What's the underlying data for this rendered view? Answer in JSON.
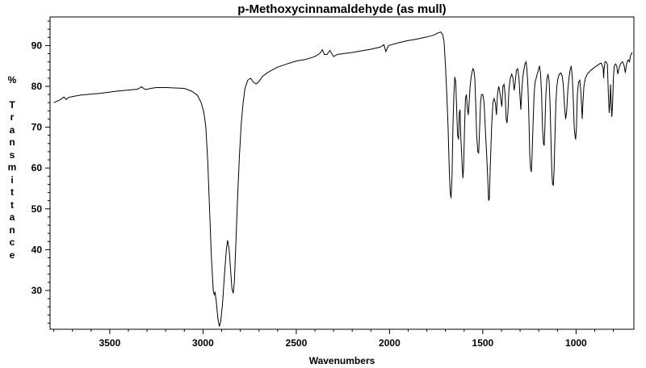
{
  "chart_data": {
    "type": "line",
    "title": "p-Methoxycinnamaldehyde (as mull)",
    "xlabel": "Wavenumbers",
    "ylabel": "% Transmittance",
    "xlim": [
      3820,
      690
    ],
    "ylim": [
      20.5,
      97
    ],
    "x_reversed": true,
    "grid": false,
    "x_ticks": [
      3500,
      3000,
      2500,
      2000,
      1500,
      1000
    ],
    "y_ticks": [
      30,
      40,
      50,
      60,
      70,
      80,
      90
    ],
    "series": [
      {
        "line_color": "#000000",
        "points": [
          [
            3800,
            76
          ],
          [
            3770,
            76.6
          ],
          [
            3745,
            77.4
          ],
          [
            3735,
            76.8
          ],
          [
            3720,
            77.3
          ],
          [
            3700,
            77.5
          ],
          [
            3650,
            77.9
          ],
          [
            3600,
            78.1
          ],
          [
            3550,
            78.3
          ],
          [
            3500,
            78.6
          ],
          [
            3450,
            78.9
          ],
          [
            3400,
            79.1
          ],
          [
            3350,
            79.3
          ],
          [
            3330,
            79.9
          ],
          [
            3310,
            79.2
          ],
          [
            3280,
            79.5
          ],
          [
            3250,
            79.7
          ],
          [
            3200,
            79.7
          ],
          [
            3150,
            79.6
          ],
          [
            3100,
            79.5
          ],
          [
            3060,
            78.8
          ],
          [
            3030,
            77.8
          ],
          [
            3010,
            76
          ],
          [
            2995,
            73.5
          ],
          [
            2985,
            70
          ],
          [
            2975,
            62
          ],
          [
            2965,
            50
          ],
          [
            2955,
            38
          ],
          [
            2945,
            30
          ],
          [
            2940,
            29
          ],
          [
            2935,
            29.5
          ],
          [
            2928,
            27
          ],
          [
            2920,
            23
          ],
          [
            2912,
            21.2
          ],
          [
            2905,
            22.5
          ],
          [
            2895,
            27
          ],
          [
            2885,
            34
          ],
          [
            2875,
            40
          ],
          [
            2868,
            42.3
          ],
          [
            2860,
            40
          ],
          [
            2852,
            35
          ],
          [
            2845,
            30.5
          ],
          [
            2838,
            29.3
          ],
          [
            2832,
            32
          ],
          [
            2825,
            40
          ],
          [
            2815,
            52
          ],
          [
            2805,
            63
          ],
          [
            2795,
            71
          ],
          [
            2785,
            76
          ],
          [
            2775,
            79.5
          ],
          [
            2760,
            81.5
          ],
          [
            2745,
            82
          ],
          [
            2730,
            81
          ],
          [
            2715,
            80.6
          ],
          [
            2700,
            81.2
          ],
          [
            2680,
            82.5
          ],
          [
            2650,
            83.5
          ],
          [
            2600,
            84.7
          ],
          [
            2550,
            85.5
          ],
          [
            2500,
            86.2
          ],
          [
            2450,
            86.6
          ],
          [
            2400,
            87.3
          ],
          [
            2375,
            88
          ],
          [
            2360,
            89
          ],
          [
            2350,
            87.8
          ],
          [
            2335,
            87.8
          ],
          [
            2320,
            88.8
          ],
          [
            2300,
            87.3
          ],
          [
            2280,
            87.8
          ],
          [
            2250,
            88
          ],
          [
            2200,
            88.3
          ],
          [
            2150,
            88.7
          ],
          [
            2100,
            89.1
          ],
          [
            2050,
            89.6
          ],
          [
            2030,
            90.2
          ],
          [
            2020,
            88.5
          ],
          [
            2005,
            90
          ],
          [
            1950,
            90.7
          ],
          [
            1900,
            91.2
          ],
          [
            1850,
            91.6
          ],
          [
            1800,
            92.1
          ],
          [
            1760,
            92.6
          ],
          [
            1740,
            93.1
          ],
          [
            1725,
            93.3
          ],
          [
            1715,
            92.7
          ],
          [
            1708,
            91
          ],
          [
            1700,
            85
          ],
          [
            1693,
            78
          ],
          [
            1686,
            70
          ],
          [
            1680,
            60
          ],
          [
            1675,
            54
          ],
          [
            1670,
            52.6
          ],
          [
            1665,
            58
          ],
          [
            1660,
            70
          ],
          [
            1655,
            78
          ],
          [
            1650,
            82.3
          ],
          [
            1645,
            81
          ],
          [
            1640,
            74
          ],
          [
            1635,
            68
          ],
          [
            1630,
            67
          ],
          [
            1626,
            73.5
          ],
          [
            1622,
            74.3
          ],
          [
            1618,
            68
          ],
          [
            1612,
            62
          ],
          [
            1607,
            57.5
          ],
          [
            1603,
            60
          ],
          [
            1598,
            70
          ],
          [
            1593,
            77
          ],
          [
            1588,
            78
          ],
          [
            1583,
            75
          ],
          [
            1578,
            73
          ],
          [
            1573,
            76
          ],
          [
            1568,
            80
          ],
          [
            1563,
            82
          ],
          [
            1558,
            83.5
          ],
          [
            1553,
            84.3
          ],
          [
            1548,
            84
          ],
          [
            1543,
            82
          ],
          [
            1538,
            76
          ],
          [
            1533,
            68
          ],
          [
            1527,
            64
          ],
          [
            1522,
            63.7
          ],
          [
            1517,
            70
          ],
          [
            1512,
            76
          ],
          [
            1507,
            78
          ],
          [
            1500,
            78
          ],
          [
            1493,
            76
          ],
          [
            1487,
            70
          ],
          [
            1480,
            64
          ],
          [
            1474,
            58
          ],
          [
            1469,
            52
          ],
          [
            1465,
            52.5
          ],
          [
            1460,
            60
          ],
          [
            1453,
            70
          ],
          [
            1446,
            76
          ],
          [
            1440,
            77
          ],
          [
            1433,
            76
          ],
          [
            1427,
            73
          ],
          [
            1421,
            78
          ],
          [
            1415,
            80
          ],
          [
            1410,
            79
          ],
          [
            1404,
            77
          ],
          [
            1398,
            75
          ],
          [
            1392,
            80
          ],
          [
            1386,
            80.5
          ],
          [
            1380,
            78
          ],
          [
            1375,
            72
          ],
          [
            1370,
            71
          ],
          [
            1365,
            74
          ],
          [
            1360,
            79
          ],
          [
            1353,
            82
          ],
          [
            1345,
            83
          ],
          [
            1338,
            82
          ],
          [
            1332,
            79
          ],
          [
            1326,
            81
          ],
          [
            1320,
            84
          ],
          [
            1313,
            84.3
          ],
          [
            1306,
            82
          ],
          [
            1300,
            77
          ],
          [
            1296,
            74.3
          ],
          [
            1292,
            78
          ],
          [
            1286,
            82
          ],
          [
            1280,
            84
          ],
          [
            1274,
            85.5
          ],
          [
            1268,
            86
          ],
          [
            1263,
            84
          ],
          [
            1258,
            80
          ],
          [
            1253,
            72
          ],
          [
            1248,
            63
          ],
          [
            1244,
            60
          ],
          [
            1240,
            59
          ],
          [
            1236,
            63
          ],
          [
            1231,
            70
          ],
          [
            1225,
            78
          ],
          [
            1220,
            81
          ],
          [
            1214,
            82
          ],
          [
            1208,
            83
          ],
          [
            1202,
            84
          ],
          [
            1196,
            85
          ],
          [
            1190,
            83
          ],
          [
            1185,
            78
          ],
          [
            1180,
            70
          ],
          [
            1175,
            66
          ],
          [
            1171,
            65.5
          ],
          [
            1167,
            70
          ],
          [
            1162,
            78
          ],
          [
            1156,
            82
          ],
          [
            1150,
            83
          ],
          [
            1144,
            81
          ],
          [
            1139,
            75
          ],
          [
            1134,
            66
          ],
          [
            1130,
            59
          ],
          [
            1126,
            56
          ],
          [
            1122,
            55.8
          ],
          [
            1118,
            59
          ],
          [
            1113,
            68
          ],
          [
            1108,
            76
          ],
          [
            1103,
            80
          ],
          [
            1097,
            82
          ],
          [
            1090,
            83
          ],
          [
            1082,
            83.3
          ],
          [
            1074,
            82.5
          ],
          [
            1068,
            80
          ],
          [
            1062,
            75
          ],
          [
            1056,
            72
          ],
          [
            1050,
            74
          ],
          [
            1044,
            79
          ],
          [
            1038,
            82
          ],
          [
            1032,
            84
          ],
          [
            1026,
            85
          ],
          [
            1020,
            82
          ],
          [
            1015,
            77
          ],
          [
            1010,
            70
          ],
          [
            1006,
            68
          ],
          [
            1002,
            67
          ],
          [
            998,
            70
          ],
          [
            993,
            78
          ],
          [
            987,
            81
          ],
          [
            980,
            81.5
          ],
          [
            975,
            79
          ],
          [
            970,
            75
          ],
          [
            967,
            72
          ],
          [
            963,
            76
          ],
          [
            958,
            80
          ],
          [
            950,
            82
          ],
          [
            940,
            83
          ],
          [
            930,
            83.5
          ],
          [
            920,
            84
          ],
          [
            905,
            84.5
          ],
          [
            890,
            85
          ],
          [
            875,
            85.5
          ],
          [
            865,
            85.7
          ],
          [
            855,
            84.5
          ],
          [
            852,
            82
          ],
          [
            850,
            84
          ],
          [
            845,
            86
          ],
          [
            838,
            86
          ],
          [
            832,
            85.3
          ],
          [
            827,
            78
          ],
          [
            822,
            73.5
          ],
          [
            818,
            76
          ],
          [
            815,
            80.5
          ],
          [
            812,
            76.5
          ],
          [
            808,
            72.5
          ],
          [
            804,
            76
          ],
          [
            800,
            82
          ],
          [
            795,
            85
          ],
          [
            788,
            85.5
          ],
          [
            782,
            85
          ],
          [
            776,
            83
          ],
          [
            772,
            84
          ],
          [
            766,
            85
          ],
          [
            758,
            85.8
          ],
          [
            750,
            86
          ],
          [
            742,
            85
          ],
          [
            736,
            83.3
          ],
          [
            731,
            85
          ],
          [
            726,
            86
          ],
          [
            720,
            86.5
          ],
          [
            714,
            86
          ],
          [
            708,
            87.5
          ],
          [
            703,
            88
          ],
          [
            700,
            88.3
          ]
        ]
      }
    ]
  }
}
